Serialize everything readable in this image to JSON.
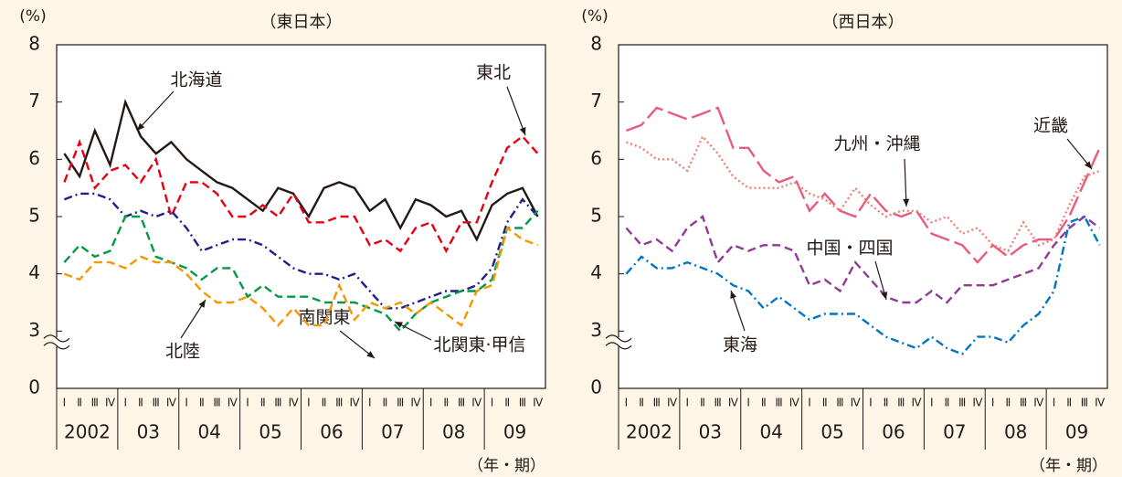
{
  "chart_data": [
    {
      "type": "line",
      "title": "（東日本）",
      "y_label": "(%)",
      "x_label": "（年・期）",
      "categories": [
        "Ⅰ",
        "Ⅱ",
        "Ⅲ",
        "Ⅳ",
        "Ⅰ",
        "Ⅱ",
        "Ⅲ",
        "Ⅳ",
        "Ⅰ",
        "Ⅱ",
        "Ⅲ",
        "Ⅳ",
        "Ⅰ",
        "Ⅱ",
        "Ⅲ",
        "Ⅳ",
        "Ⅰ",
        "Ⅱ",
        "Ⅲ",
        "Ⅳ",
        "Ⅰ",
        "Ⅱ",
        "Ⅲ",
        "Ⅳ",
        "Ⅰ",
        "Ⅱ",
        "Ⅲ",
        "Ⅳ",
        "Ⅰ",
        "Ⅱ",
        "Ⅲ",
        "Ⅳ"
      ],
      "x_groups": [
        "2002",
        "03",
        "04",
        "05",
        "06",
        "07",
        "08",
        "09"
      ],
      "ylim": [
        0,
        8
      ],
      "yticks": [
        0,
        3,
        4,
        5,
        6,
        7,
        8
      ],
      "y_break": [
        0,
        2
      ],
      "series": [
        {
          "name": "北海道",
          "color": "#231815",
          "dash": "solid",
          "values": [
            6.1,
            5.7,
            6.5,
            5.9,
            7.0,
            6.4,
            6.1,
            6.3,
            6.0,
            5.8,
            5.6,
            5.5,
            5.3,
            5.1,
            5.5,
            5.4,
            5.0,
            5.5,
            5.6,
            5.5,
            5.1,
            5.3,
            4.8,
            5.3,
            5.2,
            5.0,
            5.1,
            4.6,
            5.2,
            5.4,
            5.5,
            5.0
          ]
        },
        {
          "name": "東北",
          "color": "#e60012",
          "dash": "dashed",
          "values": [
            5.6,
            6.3,
            5.5,
            5.8,
            5.9,
            5.6,
            6.0,
            5.0,
            5.6,
            5.6,
            5.4,
            5.0,
            5.0,
            5.2,
            5.0,
            5.4,
            4.9,
            4.9,
            5.0,
            5.0,
            4.5,
            4.6,
            4.4,
            4.8,
            4.9,
            4.4,
            4.9,
            4.9,
            5.6,
            6.2,
            6.4,
            6.1
          ]
        },
        {
          "name": "南関東",
          "color": "#1d2088",
          "dash": "dashdot",
          "values": [
            5.3,
            5.4,
            5.4,
            5.3,
            5.0,
            5.1,
            5.0,
            5.1,
            4.8,
            4.4,
            4.5,
            4.6,
            4.6,
            4.5,
            4.3,
            4.1,
            4.0,
            4.0,
            3.9,
            4.0,
            3.7,
            3.4,
            3.4,
            3.5,
            3.6,
            3.7,
            3.7,
            3.8,
            4.1,
            4.9,
            5.3,
            5.0
          ]
        },
        {
          "name": "北関東·甲信",
          "color": "#009944",
          "dash": "dashed",
          "values": [
            4.2,
            4.5,
            4.3,
            4.4,
            5.0,
            5.0,
            4.3,
            4.2,
            4.1,
            3.9,
            4.1,
            4.1,
            3.6,
            3.8,
            3.6,
            3.6,
            3.6,
            3.5,
            3.5,
            3.5,
            3.4,
            3.3,
            3.0,
            3.3,
            3.5,
            3.6,
            3.7,
            3.7,
            3.9,
            4.8,
            4.8,
            5.1
          ]
        },
        {
          "name": "北陸",
          "color": "#f39800",
          "dash": "dashed",
          "values": [
            4.0,
            3.9,
            4.2,
            4.2,
            4.1,
            4.3,
            4.2,
            4.2,
            4.0,
            3.7,
            3.5,
            3.5,
            3.6,
            3.4,
            3.1,
            3.4,
            3.1,
            3.1,
            3.8,
            3.2,
            3.5,
            3.4,
            3.5,
            3.3,
            3.5,
            3.3,
            3.1,
            3.7,
            3.8,
            4.8,
            4.6,
            4.5
          ]
        }
      ]
    },
    {
      "type": "line",
      "title": "（西日本）",
      "y_label": "(%)",
      "x_label": "（年・期）",
      "categories": [
        "Ⅰ",
        "Ⅱ",
        "Ⅲ",
        "Ⅳ",
        "Ⅰ",
        "Ⅱ",
        "Ⅲ",
        "Ⅳ",
        "Ⅰ",
        "Ⅱ",
        "Ⅲ",
        "Ⅳ",
        "Ⅰ",
        "Ⅱ",
        "Ⅲ",
        "Ⅳ",
        "Ⅰ",
        "Ⅱ",
        "Ⅲ",
        "Ⅳ",
        "Ⅰ",
        "Ⅱ",
        "Ⅲ",
        "Ⅳ",
        "Ⅰ",
        "Ⅱ",
        "Ⅲ",
        "Ⅳ",
        "Ⅰ",
        "Ⅱ",
        "Ⅲ",
        "Ⅳ"
      ],
      "x_groups": [
        "2002",
        "03",
        "04",
        "05",
        "06",
        "07",
        "08",
        "09"
      ],
      "ylim": [
        0,
        8
      ],
      "yticks": [
        0,
        3,
        4,
        5,
        6,
        7,
        8
      ],
      "y_break": [
        0,
        2
      ],
      "series": [
        {
          "name": "近畿",
          "color": "#ea5a7c",
          "dash": "longdash",
          "values": [
            6.5,
            6.6,
            6.9,
            6.8,
            6.7,
            6.8,
            6.9,
            6.2,
            6.2,
            5.8,
            5.6,
            5.7,
            5.1,
            5.4,
            5.1,
            5.0,
            5.4,
            5.1,
            5.0,
            5.1,
            4.7,
            4.6,
            4.5,
            4.2,
            4.5,
            4.3,
            4.5,
            4.6,
            4.6,
            5.0,
            5.6,
            6.2
          ]
        },
        {
          "name": "九州・沖縄",
          "color": "#f08070",
          "dash": "dotted",
          "values": [
            6.3,
            6.2,
            6.0,
            6.0,
            5.8,
            6.4,
            6.1,
            5.7,
            5.5,
            5.5,
            5.5,
            5.6,
            5.4,
            5.3,
            5.1,
            5.5,
            5.2,
            5.0,
            5.1,
            5.1,
            4.9,
            5.0,
            4.7,
            4.8,
            4.5,
            4.4,
            4.9,
            4.5,
            4.6,
            5.2,
            5.7,
            5.8
          ]
        },
        {
          "name": "中国・四国",
          "color": "#8e3a96",
          "dash": "dashed",
          "values": [
            4.8,
            4.5,
            4.6,
            4.4,
            4.8,
            5.0,
            4.2,
            4.5,
            4.4,
            4.5,
            4.5,
            4.4,
            3.8,
            3.9,
            3.7,
            4.2,
            3.9,
            3.6,
            3.5,
            3.5,
            3.7,
            3.5,
            3.8,
            3.8,
            3.8,
            3.9,
            4.0,
            4.1,
            4.5,
            4.8,
            5.0,
            4.8
          ]
        },
        {
          "name": "東海",
          "color": "#0075c2",
          "dash": "dashdot",
          "values": [
            4.0,
            4.3,
            4.1,
            4.1,
            4.2,
            4.1,
            4.0,
            3.8,
            3.7,
            3.4,
            3.6,
            3.4,
            3.2,
            3.3,
            3.3,
            3.3,
            3.1,
            2.9,
            2.8,
            2.7,
            2.9,
            2.7,
            2.6,
            2.9,
            2.9,
            2.8,
            3.1,
            3.3,
            3.7,
            4.9,
            5.0,
            4.5
          ]
        }
      ]
    }
  ]
}
